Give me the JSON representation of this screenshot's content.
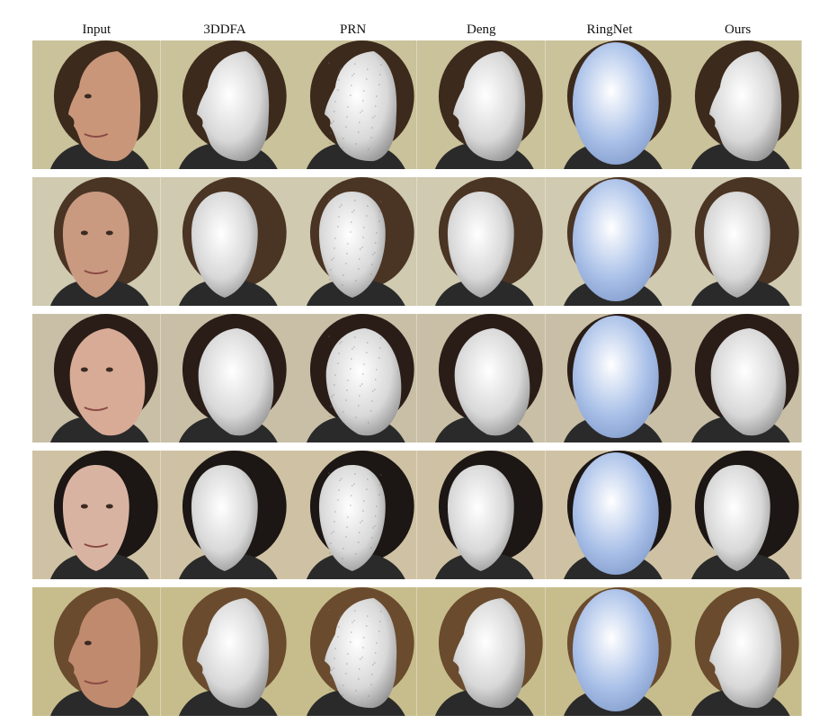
{
  "columns": [
    "Input",
    "3DDFA",
    "PRN",
    "Deng",
    "RingNet",
    "Ours"
  ],
  "rows": [
    {
      "background": "#c9c29a",
      "hair": "#3c2a1c",
      "skin": "#c9967a",
      "pose": "profile-left"
    },
    {
      "background": "#cfcab0",
      "hair": "#4a3424",
      "skin": "#c99a80",
      "pose": "frontal"
    },
    {
      "background": "#c8bfa6",
      "hair": "#2a1d17",
      "skin": "#d8ab97",
      "pose": "three-quarter-left"
    },
    {
      "background": "#cfc2a4",
      "hair": "#1c1614",
      "skin": "#d9b3a1",
      "pose": "frontal"
    },
    {
      "background": "#c7bd8c",
      "hair": "#6a4b2e",
      "skin": "#c08a6e",
      "pose": "profile-left"
    }
  ],
  "colors": {
    "mesh_gray": "#d8d8d8",
    "mesh_ringnet": "#a9c0e8"
  }
}
